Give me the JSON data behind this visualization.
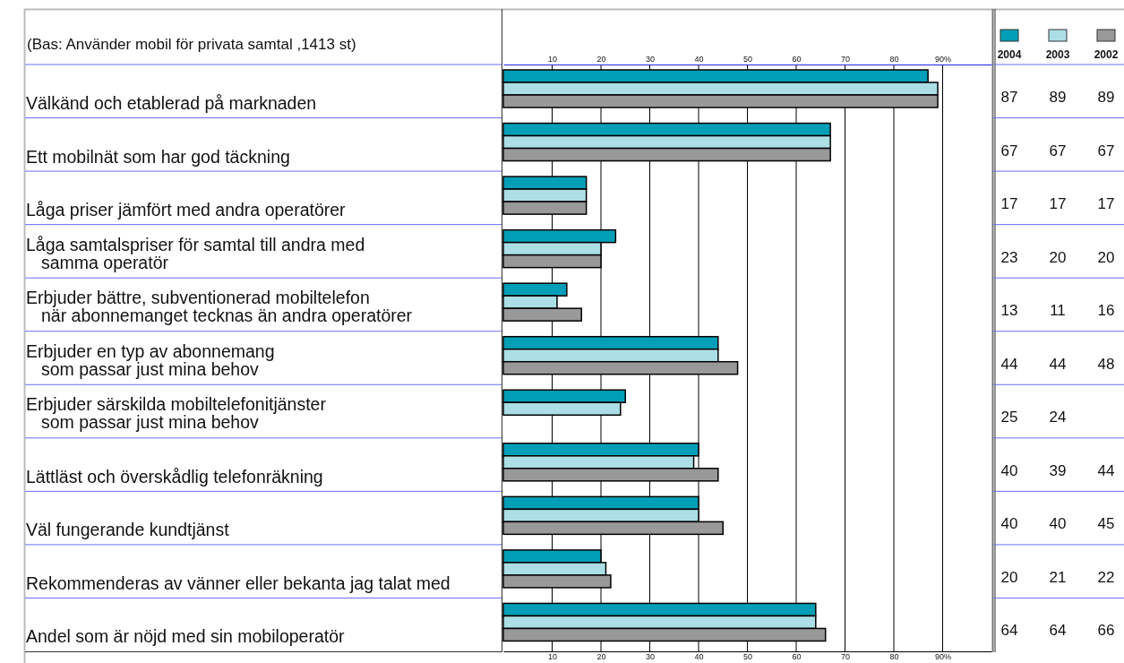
{
  "chart_data": {
    "type": "bar",
    "orientation": "horizontal",
    "annotations": [
      "(Bas: Använder mobil för privata samtal ,1413 st)"
    ],
    "categories": [
      "Välkänd och etablerad på marknaden",
      "Ett mobilnät som har god täckning",
      "Låga priser jämfört med andra operatörer",
      "Låga samtalspriser för samtal till andra med\nsamma operatör",
      "Erbjuder bättre, subventionerad mobiltelefon\nnär abonnemanget tecknas än andra operatörer",
      "Erbjuder en typ av abonnemang\nsom passar just mina behov",
      "Erbjuder särskilda mobiltelefonitjänster\nsom passar just mina behov",
      "Lättläst och överskådlig telefonräkning",
      "Väl fungerande kundtjänst",
      "Rekommenderas av vänner eller bekanta jag talat med",
      "Andel som är nöjd med sin mobiloperatör"
    ],
    "series": [
      {
        "name": "2004",
        "color": "#009fb7",
        "values": [
          87,
          67,
          17,
          23,
          13,
          44,
          25,
          40,
          40,
          20,
          64
        ]
      },
      {
        "name": "2003",
        "color": "#acdee6",
        "values": [
          89,
          67,
          17,
          20,
          11,
          44,
          24,
          39,
          40,
          21,
          64
        ]
      },
      {
        "name": "2002",
        "color": "#999999",
        "values": [
          89,
          67,
          17,
          20,
          16,
          48,
          null,
          44,
          45,
          22,
          66
        ]
      }
    ],
    "xlim": [
      0,
      100
    ],
    "xticks": [
      10,
      20,
      30,
      40,
      50,
      60,
      70,
      80,
      {
        "value": 90,
        "label": "90%"
      }
    ],
    "x2lim": [
      0,
      100
    ],
    "x2ticks": [
      10,
      20,
      30,
      40,
      50,
      60,
      70,
      80,
      {
        "value": 90,
        "label": "90%"
      }
    ],
    "grid": "x",
    "legend": "top right",
    "data_labels": true
  }
}
